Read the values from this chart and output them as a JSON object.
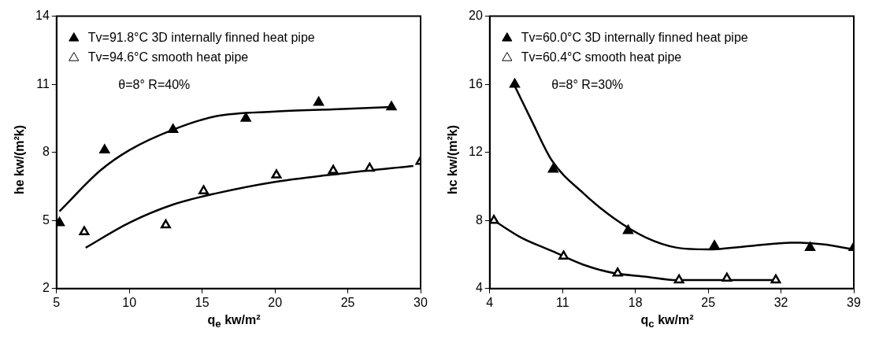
{
  "chart_data": [
    {
      "type": "scatter",
      "xlabel": "q$_{e}$ kw/m²",
      "ylabel": "he kw/(m²k)",
      "xlim": [
        5,
        30
      ],
      "xticks": [
        5,
        10,
        15,
        20,
        25,
        30
      ],
      "ylim": [
        2,
        14
      ],
      "yticks": [
        2,
        5,
        8,
        11,
        14
      ],
      "grid": false,
      "legend": "top left",
      "marker": "triangle",
      "annotations": [
        "θ=8° R=40%"
      ],
      "series": [
        {
          "name": "Tv=91.8°C 3D internally finned heat pipe",
          "color": "#000000",
          "x": [
            5.2,
            8.3,
            13,
            18,
            23,
            28
          ],
          "values": [
            4.9,
            8.1,
            9.0,
            9.5,
            10.2,
            10.0
          ]
        },
        {
          "name": "Tv=94.6°C smooth heat pipe",
          "color": "#ffffff",
          "x": [
            6.9,
            12.5,
            15.1,
            20.1,
            24,
            26.5,
            30
          ],
          "values": [
            4.5,
            4.8,
            6.3,
            7.0,
            7.2,
            7.3,
            7.6
          ]
        },
        {
          "type": "line",
          "marker": "none",
          "color": "#000000",
          "x": [
            5.2,
            8,
            10,
            13,
            16,
            20,
            24,
            28
          ],
          "values": [
            5.4,
            7.2,
            8.1,
            9.0,
            9.6,
            9.8,
            9.9,
            10.0
          ]
        },
        {
          "type": "line",
          "marker": "none",
          "color": "#000000",
          "x": [
            7,
            10,
            13,
            16,
            20,
            25,
            29.5
          ],
          "values": [
            3.8,
            4.9,
            5.7,
            6.2,
            6.7,
            7.1,
            7.4
          ]
        }
      ]
    },
    {
      "type": "scatter",
      "xlabel": "q$_{c}$ kw/m²",
      "ylabel": "hc kw/(m²k)",
      "xlim": [
        4,
        39
      ],
      "xticks": [
        4,
        11,
        18,
        25,
        32,
        39
      ],
      "ylim": [
        4,
        20
      ],
      "yticks": [
        4,
        8,
        12,
        16,
        20
      ],
      "grid": false,
      "legend": "top left",
      "marker": "triangle",
      "annotations": [
        "θ=8° R=30%"
      ],
      "series": [
        {
          "name": "Tv=60.0°C 3D internally finned heat pipe",
          "color": "#000000",
          "x": [
            6.4,
            10.1,
            17.3,
            25.6,
            34.8,
            39
          ],
          "values": [
            16.0,
            11.0,
            7.4,
            6.5,
            6.4,
            6.4
          ]
        },
        {
          "name": "Tv=60.4°C smooth heat pipe",
          "color": "#ffffff",
          "x": [
            4.4,
            11.1,
            16.3,
            22.2,
            26.8,
            31.5
          ],
          "values": [
            8.0,
            5.9,
            4.9,
            4.5,
            4.6,
            4.5
          ]
        },
        {
          "type": "line",
          "marker": "none",
          "color": "#000000",
          "x": [
            6.4,
            8,
            10,
            13,
            16,
            19,
            22,
            25,
            29,
            33,
            36,
            39
          ],
          "values": [
            15.9,
            13.9,
            11.5,
            9.6,
            8.1,
            7.0,
            6.4,
            6.3,
            6.5,
            6.7,
            6.6,
            6.3
          ]
        },
        {
          "type": "line",
          "marker": "none",
          "color": "#000000",
          "x": [
            4.4,
            7,
            10,
            13,
            16,
            19,
            22,
            26,
            31.5
          ],
          "values": [
            8.0,
            7.0,
            6.2,
            5.4,
            4.9,
            4.7,
            4.5,
            4.5,
            4.5
          ]
        }
      ]
    }
  ]
}
